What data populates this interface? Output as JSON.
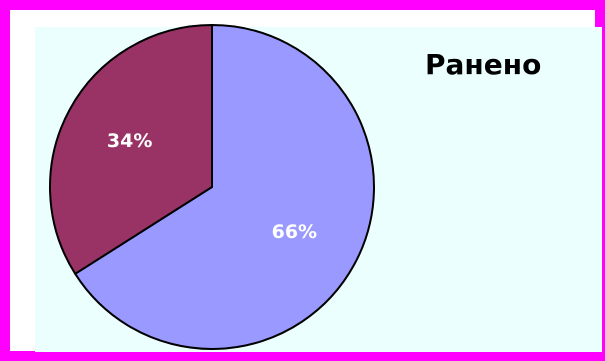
{
  "chart_data": {
    "type": "pie",
    "title": "Ранено",
    "slices": [
      {
        "label": "66%",
        "value": 66,
        "color": "#9999ff"
      },
      {
        "label": "34%",
        "value": 34,
        "color": "#993366"
      }
    ],
    "start_angle_deg": 0,
    "direction": "clockwise",
    "legend": false
  },
  "colors": {
    "frame_border": "#ff00ff",
    "plot_background": "#ecffff",
    "slice_outline": "#000000",
    "label_text": "#ffffff"
  }
}
